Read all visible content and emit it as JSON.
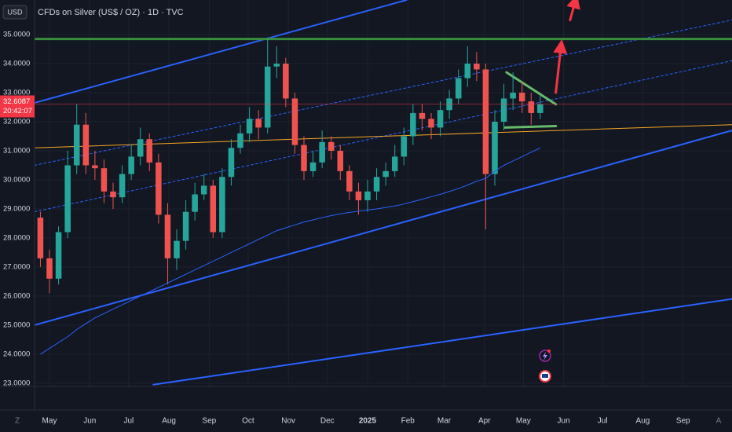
{
  "header": {
    "currency": "USD",
    "title": "CFDs on Silver (US$ / OZ) · 1D · TVC"
  },
  "ui": {
    "left_button": "Z",
    "right_button": "A"
  },
  "chart_data": {
    "type": "candlestick",
    "colors": {
      "up": "#26a69a",
      "down": "#ef5350",
      "ma": "#2962ff"
    },
    "xlim": [
      -11.5,
      525.7
    ],
    "ylim": [
      22.89,
      36.19
    ],
    "grid": true,
    "xticks": [
      {
        "value": 0,
        "label": "May"
      },
      {
        "value": 31,
        "label": "Jun"
      },
      {
        "value": 61,
        "label": "Jul"
      },
      {
        "value": 92,
        "label": "Aug"
      },
      {
        "value": 123,
        "label": "Sep"
      },
      {
        "value": 153,
        "label": "Oct"
      },
      {
        "value": 184,
        "label": "Nov"
      },
      {
        "value": 214,
        "label": "Dec"
      },
      {
        "value": 245,
        "label": "2025"
      },
      {
        "value": 276,
        "label": "Feb"
      },
      {
        "value": 304,
        "label": "Mar"
      },
      {
        "value": 335,
        "label": "Apr"
      },
      {
        "value": 365,
        "label": "May"
      },
      {
        "value": 396,
        "label": "Jun"
      },
      {
        "value": 426,
        "label": "Jul"
      },
      {
        "value": 457,
        "label": "Aug"
      },
      {
        "value": 488,
        "label": "Sep"
      }
    ],
    "yticks": [
      {
        "value": 35,
        "label": "35.0000"
      },
      {
        "value": 34,
        "label": "34.0000"
      },
      {
        "value": 33,
        "label": "33.0000"
      },
      {
        "value": 32,
        "label": "32.0000"
      },
      {
        "value": 31,
        "label": "31.0000"
      },
      {
        "value": 30,
        "label": "30.0000"
      },
      {
        "value": 29,
        "label": "29.0000"
      },
      {
        "value": 28,
        "label": "28.0000"
      },
      {
        "value": 27,
        "label": "27.0000"
      },
      {
        "value": 26,
        "label": "26.0000"
      },
      {
        "value": 25,
        "label": "25.0000"
      },
      {
        "value": 24,
        "label": "24.0000"
      },
      {
        "value": 23,
        "label": "23.0000"
      }
    ],
    "x": [
      -7,
      0,
      7,
      14,
      21,
      28,
      35,
      42,
      49,
      56,
      63,
      70,
      77,
      84,
      91,
      98,
      105,
      112,
      119,
      126,
      133,
      140,
      147,
      154,
      161,
      168,
      175,
      182,
      189,
      196,
      203,
      210,
      217,
      224,
      231,
      238,
      245,
      252,
      259,
      266,
      273,
      280,
      287,
      294,
      301,
      308,
      315,
      322,
      329,
      336,
      343,
      350,
      357,
      364,
      371,
      378
    ],
    "open": [
      28.7,
      27.3,
      26.6,
      28.2,
      30.5,
      31.9,
      30.5,
      30.4,
      29.6,
      29.4,
      30.2,
      30.8,
      31.4,
      30.6,
      28.8,
      27.3,
      27.9,
      28.9,
      29.5,
      29.8,
      28.2,
      30.1,
      31.1,
      31.6,
      32.1,
      31.8,
      33.9,
      34.0,
      32.8,
      31.2,
      30.3,
      30.6,
      31.3,
      31.0,
      30.3,
      29.6,
      29.3,
      29.6,
      30.1,
      30.3,
      30.8,
      31.5,
      32.3,
      32.1,
      31.8,
      32.4,
      32.8,
      33.5,
      34.0,
      33.8,
      30.2,
      32.0,
      32.8,
      33.0,
      32.7,
      32.3
    ],
    "high": [
      28.9,
      27.6,
      28.4,
      31.0,
      32.6,
      32.3,
      31.0,
      30.7,
      29.9,
      30.5,
      31.2,
      31.8,
      31.6,
      30.9,
      29.2,
      28.3,
      29.3,
      29.9,
      30.2,
      30.0,
      30.4,
      31.4,
      31.9,
      32.5,
      32.4,
      34.9,
      34.6,
      34.2,
      33.0,
      31.5,
      31.0,
      31.7,
      31.5,
      31.2,
      30.5,
      29.9,
      30.0,
      30.4,
      30.6,
      31.2,
      31.8,
      32.6,
      32.6,
      32.3,
      32.7,
      33.1,
      33.8,
      34.6,
      34.4,
      34.0,
      32.4,
      33.3,
      33.7,
      33.4,
      33.0,
      32.9
    ],
    "low": [
      27.0,
      26.1,
      26.4,
      28.0,
      30.2,
      30.2,
      30.0,
      29.2,
      29.0,
      29.2,
      30.0,
      30.5,
      30.3,
      28.5,
      26.4,
      26.9,
      27.6,
      28.6,
      29.3,
      28.0,
      28.0,
      29.8,
      30.9,
      31.3,
      31.4,
      31.6,
      33.5,
      32.5,
      30.9,
      30.0,
      30.1,
      30.4,
      30.7,
      30.0,
      29.3,
      28.8,
      28.9,
      29.3,
      29.8,
      30.1,
      30.5,
      31.2,
      31.7,
      31.4,
      31.5,
      32.1,
      32.6,
      33.2,
      33.4,
      28.3,
      29.8,
      31.7,
      32.4,
      32.3,
      31.9,
      32.1
    ],
    "close": [
      27.3,
      26.6,
      28.2,
      30.5,
      31.9,
      30.5,
      30.4,
      29.6,
      29.4,
      30.2,
      30.8,
      31.4,
      30.6,
      28.8,
      27.3,
      27.9,
      28.9,
      29.5,
      29.8,
      28.2,
      30.1,
      31.1,
      31.6,
      32.1,
      31.8,
      33.9,
      34.0,
      32.8,
      31.2,
      30.3,
      30.6,
      31.3,
      31.0,
      30.3,
      29.6,
      29.3,
      29.6,
      30.1,
      30.3,
      30.8,
      31.5,
      32.3,
      32.1,
      31.8,
      32.4,
      32.8,
      33.5,
      34.0,
      33.8,
      30.2,
      32.0,
      32.8,
      33.0,
      32.7,
      32.3,
      32.6
    ],
    "ma": [
      24.0,
      24.2,
      24.4,
      24.6,
      24.85,
      25.05,
      25.25,
      25.4,
      25.55,
      25.7,
      25.85,
      26.0,
      26.15,
      26.3,
      26.45,
      26.6,
      26.75,
      26.9,
      27.05,
      27.2,
      27.35,
      27.5,
      27.65,
      27.8,
      27.95,
      28.1,
      28.25,
      28.35,
      28.45,
      28.55,
      28.62,
      28.7,
      28.77,
      28.83,
      28.88,
      28.92,
      28.96,
      29.0,
      29.05,
      29.1,
      29.17,
      29.25,
      29.33,
      29.42,
      29.5,
      29.6,
      29.7,
      29.82,
      29.95,
      30.05,
      30.3,
      30.5,
      30.65,
      30.8,
      30.95,
      31.1
    ],
    "last_price": 32.6087,
    "countdown": "20:42:07",
    "last_color": "#f23645",
    "drawings": [
      {
        "color": "#2962ff",
        "style": "solid",
        "width": 2,
        "x": [
          -11.5,
          275
        ],
        "y": [
          32.65,
          36.19
        ]
      },
      {
        "color": "#2962ff",
        "style": "solid",
        "width": 2,
        "x": [
          -11.5,
          525.7
        ],
        "y": [
          25.0,
          31.7
        ]
      },
      {
        "color": "#2962ff",
        "style": "solid",
        "width": 2,
        "x": [
          80,
          525.7
        ],
        "y": [
          22.95,
          25.9
        ]
      },
      {
        "color": "#2962ff",
        "style": "dashed",
        "width": 1,
        "x": [
          -11.5,
          525.7
        ],
        "y": [
          30.5,
          35.5
        ]
      },
      {
        "color": "#2962ff",
        "style": "dashed",
        "width": 1,
        "x": [
          -11.5,
          525.7
        ],
        "y": [
          28.9,
          34.1
        ]
      },
      {
        "color": "#388e3c",
        "style": "solid",
        "width": 3,
        "x": [
          -11.5,
          525.7
        ],
        "y": [
          34.85,
          34.85
        ]
      },
      {
        "color": "#f5a623",
        "style": "solid",
        "width": 1,
        "x": [
          -11.5,
          525.7
        ],
        "y": [
          31.1,
          31.9
        ]
      },
      {
        "color": "#66bb6a",
        "style": "solid",
        "width": 3,
        "x": [
          352,
          390
        ],
        "y": [
          33.7,
          32.6
        ]
      },
      {
        "color": "#66bb6a",
        "style": "solid",
        "width": 3,
        "x": [
          351,
          390
        ],
        "y": [
          31.8,
          31.85
        ]
      },
      {
        "color": "#f23645",
        "style": "arrow",
        "width": 3,
        "x": [
          390,
          394
        ],
        "y": [
          33.0,
          34.6
        ]
      },
      {
        "color": "#f23645",
        "style": "arrow",
        "width": 3,
        "x": [
          401,
          405
        ],
        "y": [
          35.5,
          36.15
        ]
      }
    ]
  }
}
